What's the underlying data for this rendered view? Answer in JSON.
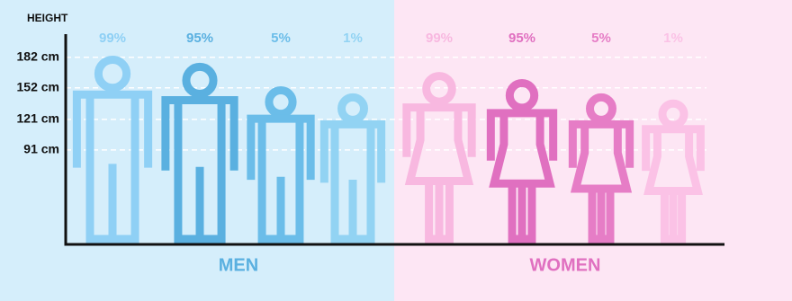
{
  "chart_data": {
    "type": "pictograph",
    "y_label": "HEIGHT",
    "ylim": [
      0,
      210
    ],
    "yticks": [
      {
        "value": 182,
        "label": "182 cm"
      },
      {
        "value": 152,
        "label": "152 cm"
      },
      {
        "value": 121,
        "label": "121 cm"
      },
      {
        "value": 91,
        "label": "91 cm"
      }
    ],
    "grid": true,
    "series": [
      {
        "name": "MEN",
        "figure": "man",
        "color": "#5ab0e0",
        "background": "#d5eefb",
        "categories": [
          "99%",
          "95%",
          "5%",
          "1%"
        ],
        "values": [
          184,
          177,
          154,
          147
        ],
        "colors": [
          "#8fd0f5",
          "#5ab0e0",
          "#6bbde9",
          "#92d3f3"
        ]
      },
      {
        "name": "WOMEN",
        "figure": "woman",
        "color": "#e070c0",
        "background": "#fde6f4",
        "categories": [
          "99%",
          "95%",
          "5%",
          "1%"
        ],
        "values": [
          168,
          161,
          147,
          141
        ],
        "colors": [
          "#f8b8e0",
          "#e070c0",
          "#e67dc6",
          "#fbc2e6"
        ]
      }
    ]
  }
}
